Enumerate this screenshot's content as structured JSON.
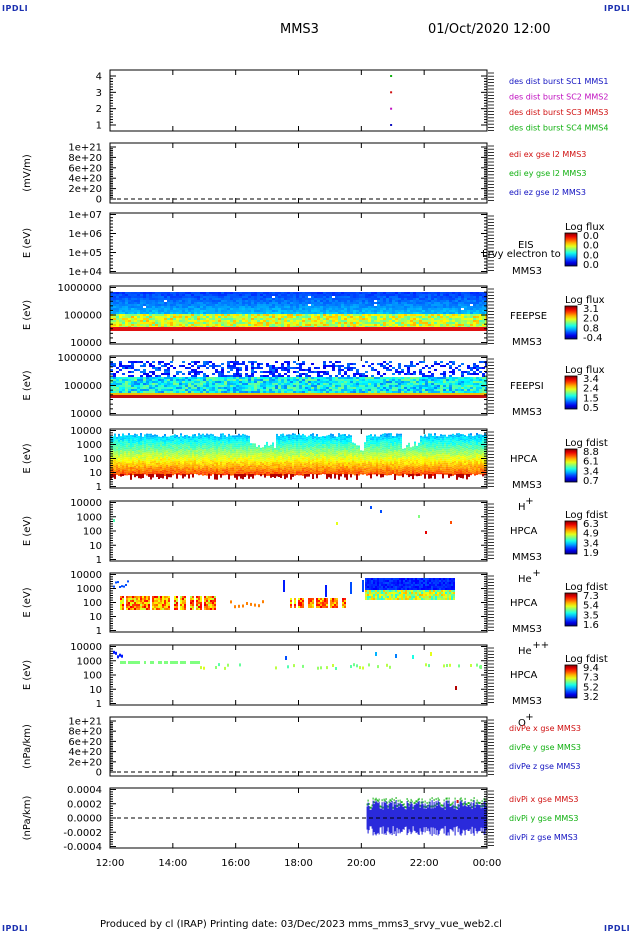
{
  "header": {
    "corner_label": "IPDLI",
    "spacecraft": "MMS3",
    "datetime": "01/Oct/2020 12:00"
  },
  "footer": {
    "text": "Produced by cl (IRAP)   Printing date: 03/Dec/2023   mms_mms3_srvy_vue_web2.cl"
  },
  "chart_data": {
    "type": "multi-panel time series / spectrogram",
    "x_ticks": [
      "12:00",
      "14:00",
      "16:00",
      "18:00",
      "20:00",
      "22:00",
      "00:00"
    ],
    "panels": [
      {
        "id": "burst",
        "kind": "flags",
        "ylabel": "",
        "yticks": [
          "1",
          "2",
          "3",
          "4"
        ],
        "legend": [
          {
            "text": "des dist burst SC1 MMS1",
            "color": "#1010c0"
          },
          {
            "text": "des dist burst SC2 MMS2",
            "color": "#c010c0"
          },
          {
            "text": "des dist burst SC3 MMS3",
            "color": "#d01010"
          },
          {
            "text": "des dist burst SC4 MMS4",
            "color": "#10b010"
          }
        ],
        "marks": [
          {
            "time": "20:55",
            "level": 1,
            "color": "#1010c0"
          },
          {
            "time": "20:55",
            "level": 2,
            "color": "#c010c0"
          },
          {
            "time": "20:55",
            "level": 3,
            "color": "#d01010"
          },
          {
            "time": "20:55",
            "level": 4,
            "color": "#10b010"
          }
        ]
      },
      {
        "id": "edi",
        "kind": "line",
        "ylabel": "(mV/m)",
        "yticks": [
          "0",
          "2e+20",
          "4e+20",
          "6e+20",
          "8e+20",
          "1e+21"
        ],
        "legend": [
          {
            "text": "edi ex gse l2 MMS3",
            "color": "#d01010"
          },
          {
            "text": "edi ey gse l2 MMS3",
            "color": "#10b010"
          },
          {
            "text": "edi ez gse l2 MMS3",
            "color": "#1010c0"
          }
        ]
      },
      {
        "id": "eis",
        "kind": "spectrogram",
        "ylabel": "E (eV)",
        "yticks": [
          "1e+04",
          "1e+05",
          "1e+06",
          "1e+07"
        ],
        "instrument": [
          "EIS",
          "MMS3"
        ],
        "overlay_text": "Lrvy electron to",
        "colorbar_title": "Log flux",
        "colorbar_values": [
          "0.0",
          "0.0",
          "0.0",
          "0.0"
        ]
      },
      {
        "id": "feepse",
        "kind": "spectrogram",
        "ylabel": "E (eV)",
        "yticks": [
          "10000",
          "100000",
          "1000000"
        ],
        "instrument": [
          "FEEPSE",
          "MMS3"
        ],
        "colorbar_title": "Log flux",
        "colorbar_values": [
          "3.1",
          "2.0",
          "0.8",
          "-0.4"
        ]
      },
      {
        "id": "feepsi",
        "kind": "spectrogram",
        "ylabel": "E (eV)",
        "yticks": [
          "10000",
          "100000",
          "1000000"
        ],
        "instrument": [
          "FEEPSI",
          "MMS3"
        ],
        "colorbar_title": "Log flux",
        "colorbar_values": [
          "3.4",
          "2.4",
          "1.5",
          "0.5"
        ]
      },
      {
        "id": "hpca_h",
        "kind": "spectrogram",
        "ylabel": "E (eV)",
        "yticks": [
          "1",
          "10",
          "100",
          "1000",
          "10000"
        ],
        "instrument": [
          "HPCA",
          "MMS3",
          "H",
          "+"
        ],
        "colorbar_title": "Log fdist",
        "colorbar_values": [
          "8.8",
          "6.1",
          "3.4",
          "0.7"
        ]
      },
      {
        "id": "hpca_he",
        "kind": "spectrogram",
        "ylabel": "E (eV)",
        "yticks": [
          "1",
          "10",
          "100",
          "1000",
          "10000"
        ],
        "instrument": [
          "HPCA",
          "MMS3",
          "He",
          "+"
        ],
        "colorbar_title": "Log fdist",
        "colorbar_values": [
          "6.3",
          "4.9",
          "3.4",
          "1.9"
        ]
      },
      {
        "id": "hpca_hepp",
        "kind": "spectrogram",
        "ylabel": "E (eV)",
        "yticks": [
          "1",
          "10",
          "100",
          "1000",
          "10000"
        ],
        "instrument": [
          "HPCA",
          "MMS3",
          "He",
          "++"
        ],
        "colorbar_title": "Log fdist",
        "colorbar_values": [
          "7.3",
          "5.4",
          "3.5",
          "1.6"
        ]
      },
      {
        "id": "hpca_o",
        "kind": "spectrogram",
        "ylabel": "E (eV)",
        "yticks": [
          "1",
          "10",
          "100",
          "1000",
          "10000"
        ],
        "instrument": [
          "HPCA",
          "MMS3",
          "O",
          "+"
        ],
        "colorbar_title": "Log fdist",
        "colorbar_values": [
          "9.4",
          "7.3",
          "5.2",
          "3.2"
        ]
      },
      {
        "id": "divpe",
        "kind": "line",
        "ylabel": "(nPa/km)",
        "yticks": [
          "0",
          "2e+20",
          "4e+20",
          "6e+20",
          "8e+20",
          "1e+21"
        ],
        "legend": [
          {
            "text": "divPe x gse MMS3",
            "color": "#d01010"
          },
          {
            "text": "divPe y gse MMS3",
            "color": "#10b010"
          },
          {
            "text": "divPe z gse MMS3",
            "color": "#1010c0"
          }
        ]
      },
      {
        "id": "divpi",
        "kind": "line",
        "ylabel": "(nPa/km)",
        "yticks": [
          "-0.0004",
          "-0.0002",
          "0.0000",
          "0.0002",
          "0.0004"
        ],
        "legend": [
          {
            "text": "divPi x gse MMS3",
            "color": "#d01010"
          },
          {
            "text": "divPi y gse MMS3",
            "color": "#10b010"
          },
          {
            "text": "divPi z gse MMS3",
            "color": "#1010c0"
          }
        ],
        "data_interval": [
          "20:10",
          "00:00"
        ],
        "amplitude_range": [
          -0.0003,
          0.0003
        ]
      }
    ]
  }
}
